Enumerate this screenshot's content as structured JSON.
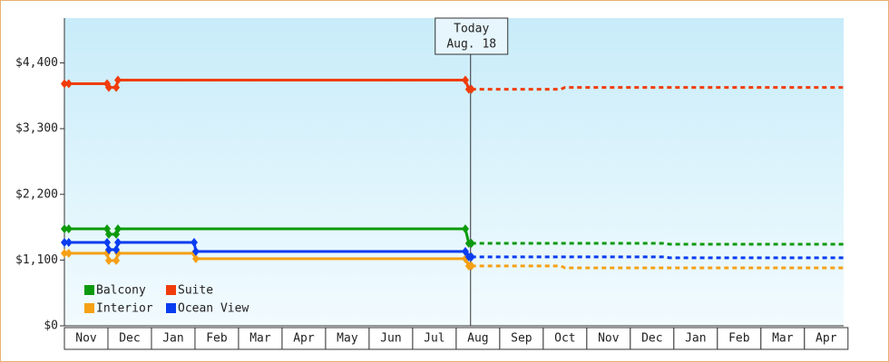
{
  "chart_data": {
    "type": "step-line",
    "xlim": [
      0,
      17.9
    ],
    "ylim": [
      0,
      5150
    ],
    "yticks": [
      {
        "value": 0,
        "label": "$0"
      },
      {
        "value": 1100,
        "label": "$1,100"
      },
      {
        "value": 2200,
        "label": "$2,200"
      },
      {
        "value": 3300,
        "label": "$3,300"
      },
      {
        "value": 4400,
        "label": "$4,400"
      }
    ],
    "categories": [
      "Nov",
      "Dec",
      "Jan",
      "Feb",
      "Mar",
      "Apr",
      "May",
      "Jun",
      "Jul",
      "Aug",
      "Sep",
      "Oct",
      "Nov",
      "Dec",
      "Jan",
      "Feb",
      "Mar",
      "Apr"
    ],
    "today": {
      "x": 9.33,
      "label": "Today",
      "date": "Aug. 18"
    },
    "series": [
      {
        "name": "Balcony",
        "color": "#0c9a0c",
        "x": [
          0,
          0.1,
          0.98,
          1.02,
          1.19,
          1.23,
          9.21,
          9.29,
          9.35
        ],
        "values": [
          1623,
          1623,
          1623,
          1532,
          1532,
          1623,
          1623,
          1381,
          1381
        ],
        "forecast_x": [
          9.35,
          13.8,
          13.9,
          17.9
        ],
        "forecast_values": [
          1381,
          1381,
          1366,
          1366
        ]
      },
      {
        "name": "Suite",
        "color": "#f03c0a",
        "x": [
          0,
          0.1,
          0.98,
          1.02,
          1.19,
          1.23,
          9.21,
          9.29,
          9.35
        ],
        "values": [
          4051,
          4051,
          4051,
          3990,
          3990,
          4112,
          4112,
          3960,
          3960
        ],
        "forecast_x": [
          9.35,
          11.4,
          11.5,
          17.9
        ],
        "forecast_values": [
          3960,
          3960,
          3990,
          3990
        ]
      },
      {
        "name": "Interior",
        "color": "#f5a015",
        "x": [
          0,
          0.1,
          0.98,
          1.02,
          1.19,
          1.23,
          2.98,
          3.02,
          9.21,
          9.29,
          9.35
        ],
        "values": [
          1214,
          1214,
          1214,
          1092,
          1092,
          1214,
          1214,
          1123,
          1123,
          1001,
          1001
        ],
        "forecast_x": [
          9.35,
          11.4,
          11.5,
          17.9
        ],
        "forecast_values": [
          1001,
          1001,
          970,
          970
        ]
      },
      {
        "name": "Ocean View",
        "color": "#0a3cf0",
        "x": [
          0,
          0.1,
          0.98,
          1.02,
          1.19,
          1.23,
          2.98,
          3.02,
          9.21,
          9.29,
          9.35
        ],
        "values": [
          1396,
          1396,
          1396,
          1274,
          1274,
          1396,
          1396,
          1244,
          1244,
          1153,
          1153
        ],
        "forecast_x": [
          9.35,
          13.8,
          13.9,
          17.9
        ],
        "forecast_values": [
          1153,
          1153,
          1138,
          1138
        ]
      }
    ]
  }
}
